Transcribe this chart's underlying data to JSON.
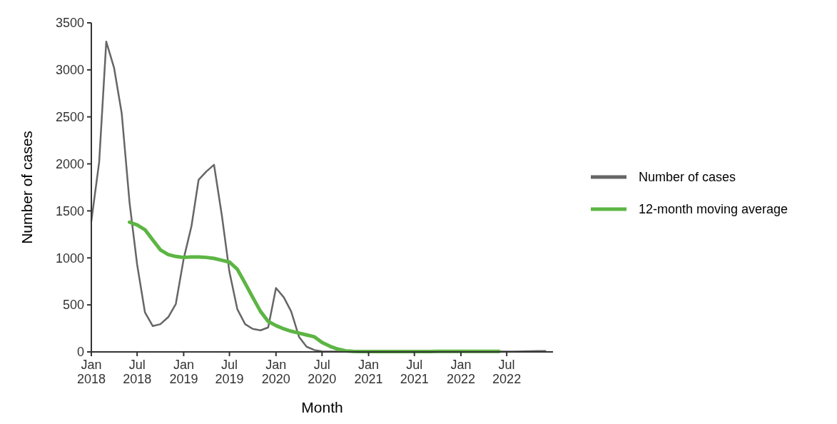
{
  "chart_data": {
    "type": "line",
    "xlabel": "Month",
    "ylabel": "Number of cases",
    "xlim": [
      "2018-01-01",
      "2022-12-31"
    ],
    "xticks": [
      {
        "value": "2018-01",
        "label": "Jan\n2018"
      },
      {
        "value": "2018-07",
        "label": "Jul\n2018"
      },
      {
        "value": "2019-01",
        "label": "Jan\n2019"
      },
      {
        "value": "2019-07",
        "label": "Jul\n2019"
      },
      {
        "value": "2020-01",
        "label": "Jan\n2020"
      },
      {
        "value": "2020-07",
        "label": "Jul\n2020"
      },
      {
        "value": "2021-01",
        "label": "Jan\n2021"
      },
      {
        "value": "2021-07",
        "label": "Jul\n2021"
      },
      {
        "value": "2022-01",
        "label": "Jan\n2022"
      },
      {
        "value": "2022-07",
        "label": "Jul\n2022"
      }
    ],
    "ylim": [
      0,
      3500
    ],
    "yticks": [
      0,
      500,
      1000,
      1500,
      2000,
      2500,
      3000,
      3500
    ],
    "grid": false,
    "legend": "right",
    "marker": "none",
    "line_style": "solid",
    "series": [
      {
        "name": "Number of cases",
        "color": "#666666",
        "x": [
          "2018-01",
          "2018-02",
          "2018-03",
          "2018-04",
          "2018-05",
          "2018-06",
          "2018-07",
          "2018-08",
          "2018-09",
          "2018-10",
          "2018-11",
          "2018-12",
          "2019-01",
          "2019-02",
          "2019-03",
          "2019-04",
          "2019-05",
          "2019-06",
          "2019-07",
          "2019-08",
          "2019-09",
          "2019-10",
          "2019-11",
          "2019-12",
          "2020-01",
          "2020-02",
          "2020-03",
          "2020-04",
          "2020-05",
          "2020-06",
          "2020-07",
          "2020-08",
          "2020-09",
          "2020-10",
          "2020-11",
          "2020-12",
          "2021-01",
          "2021-02",
          "2021-03",
          "2021-04",
          "2021-05",
          "2021-06",
          "2021-07",
          "2021-08",
          "2021-09",
          "2021-10",
          "2021-11",
          "2021-12",
          "2022-01",
          "2022-02",
          "2022-03",
          "2022-04",
          "2022-05",
          "2022-06",
          "2022-07",
          "2022-08",
          "2022-09",
          "2022-10",
          "2022-11",
          "2022-12"
        ],
        "values": [
          1390,
          2020,
          3300,
          3020,
          2540,
          1590,
          930,
          420,
          275,
          295,
          370,
          510,
          990,
          1340,
          1830,
          1920,
          1990,
          1450,
          850,
          455,
          295,
          245,
          230,
          260,
          680,
          580,
          430,
          160,
          55,
          20,
          5,
          3,
          3,
          3,
          3,
          3,
          3,
          3,
          3,
          3,
          3,
          3,
          3,
          3,
          3,
          3,
          3,
          3,
          3,
          3,
          3,
          3,
          3,
          3,
          3,
          3,
          5,
          8,
          10,
          10
        ]
      },
      {
        "name": "12-month moving average",
        "color": "#5db544",
        "x": [
          "2018-06",
          "2018-07",
          "2018-08",
          "2018-09",
          "2018-10",
          "2018-11",
          "2018-12",
          "2019-01",
          "2019-02",
          "2019-03",
          "2019-04",
          "2019-05",
          "2019-06",
          "2019-07",
          "2019-08",
          "2019-09",
          "2019-10",
          "2019-11",
          "2019-12",
          "2020-01",
          "2020-02",
          "2020-03",
          "2020-04",
          "2020-05",
          "2020-06",
          "2020-07",
          "2020-08",
          "2020-09",
          "2020-10",
          "2020-11",
          "2020-12",
          "2021-01",
          "2021-02",
          "2021-03",
          "2021-04",
          "2021-05",
          "2021-06",
          "2021-07",
          "2021-08",
          "2021-09",
          "2021-10",
          "2021-11",
          "2021-12",
          "2022-01",
          "2022-02",
          "2022-03",
          "2022-04",
          "2022-05",
          "2022-06"
        ],
        "values": [
          1380,
          1350,
          1300,
          1190,
          1085,
          1035,
          1015,
          1005,
          1010,
          1010,
          1005,
          995,
          975,
          955,
          880,
          730,
          580,
          430,
          325,
          280,
          245,
          220,
          200,
          180,
          160,
          100,
          60,
          30,
          12,
          5,
          3,
          3,
          3,
          3,
          3,
          3,
          3,
          3,
          3,
          3,
          5,
          5,
          5,
          5,
          5,
          5,
          5,
          5,
          5
        ]
      }
    ]
  }
}
